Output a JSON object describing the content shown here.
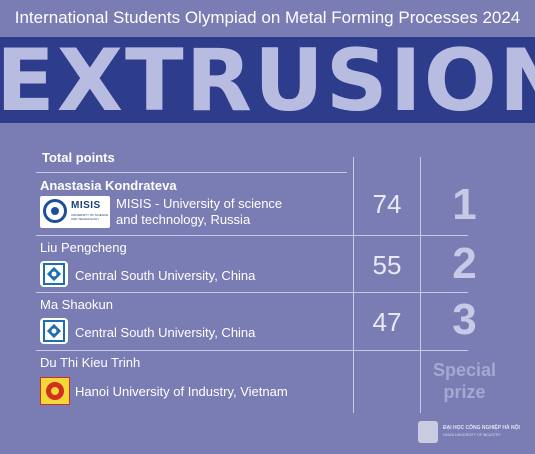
{
  "header": {
    "title": "International Students Olympiad on Metal Forming Processes 2024",
    "banner": "EXTRUSION"
  },
  "table": {
    "total_label": "Total points",
    "rows": [
      {
        "name": "Anastasia Kondrateva",
        "university_line1": "MISIS - University of science",
        "university_line2": "and technology, Russia",
        "logo_text": "MISIS",
        "logo_subtext": "UNIVERSITY OF SCIENCE AND TECHNOLOGY",
        "points": "74",
        "place": "1"
      },
      {
        "name": "Liu Pengcheng",
        "university": "Central South University, China",
        "points": "55",
        "place": "2"
      },
      {
        "name": "Ma Shaokun",
        "university": "Central South University, China",
        "points": "47",
        "place": "3"
      },
      {
        "name": "Du Thi Kieu Trinh",
        "university": "Hanoi University of Industry, Vietnam",
        "place_line1": "Special",
        "place_line2": "prize"
      }
    ]
  },
  "footer": {
    "line1": "ĐẠI HỌC CÔNG NGHIỆP HÀ NỘI",
    "line2": "HANOI UNIVERSITY OF INDUSTRY"
  },
  "colors": {
    "background": "#7a7db3",
    "banner": "#2e3c8c",
    "banner_text": "#b8bce0"
  }
}
